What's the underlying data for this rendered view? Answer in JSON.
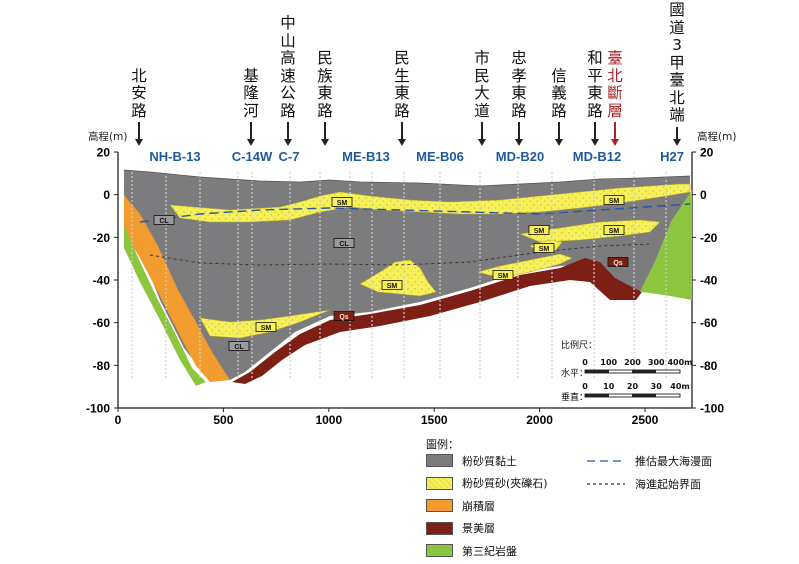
{
  "roads": [
    {
      "name": "北安路",
      "x": 139,
      "color": "black"
    },
    {
      "name": "基隆河",
      "x": 251,
      "color": "black"
    },
    {
      "name": "中山高速公路",
      "x": 288,
      "color": "black"
    },
    {
      "name": "民族東路",
      "x": 325,
      "color": "black"
    },
    {
      "name": "民生東路",
      "x": 402,
      "color": "black"
    },
    {
      "name": "市民大道",
      "x": 482,
      "color": "black"
    },
    {
      "name": "忠孝東路",
      "x": 519,
      "color": "black"
    },
    {
      "name": "信義路",
      "x": 559,
      "color": "black"
    },
    {
      "name": "和平東路",
      "x": 595,
      "color": "black"
    },
    {
      "name": "臺北斷層",
      "x": 615,
      "color": "red"
    },
    {
      "name": "國道3甲臺北端",
      "x": 677,
      "color": "black"
    }
  ],
  "boreholes": [
    {
      "label": "NH-B-13",
      "x": 175
    },
    {
      "label": "C-14W",
      "x": 252
    },
    {
      "label": "C-7",
      "x": 289
    },
    {
      "label": "ME-B13",
      "x": 366
    },
    {
      "label": "ME-B06",
      "x": 440
    },
    {
      "label": "MD-B20",
      "x": 520
    },
    {
      "label": "MD-B12",
      "x": 597
    },
    {
      "label": "H27",
      "x": 672
    }
  ],
  "axes": {
    "y_label_left": "高程(m)",
    "y_label_right": "高程(m)",
    "y_ticks": [
      "20",
      "0",
      "-20",
      "-40",
      "-60",
      "-80",
      "-100"
    ],
    "x_ticks": [
      "0",
      "500",
      "1000",
      "1500",
      "2000",
      "2500"
    ]
  },
  "layer_labels": [
    "CL",
    "CL",
    "CL",
    "SM",
    "SM",
    "SM",
    "SM",
    "SM",
    "SM",
    "SM",
    "SM",
    "SM",
    "Qs",
    "Qs"
  ],
  "scale": {
    "title": "比例尺：",
    "horizontal_label": "水平：",
    "vertical_label": "垂直：",
    "horizontal_ticks": [
      "0",
      "100",
      "200",
      "300",
      "400m"
    ],
    "vertical_ticks": [
      "0",
      "10",
      "20",
      "30",
      "40m"
    ]
  },
  "legend": {
    "title": "圖例：",
    "items": [
      {
        "label": "粉砂質黏土",
        "color": "#7c7c7e"
      },
      {
        "label": "粉砂質砂(夾礫石)",
        "color": "#f6f05a"
      },
      {
        "label": "崩積層",
        "color": "#f29b2e"
      },
      {
        "label": "景美層",
        "color": "#7d1f14"
      },
      {
        "label": "第三紀岩盤",
        "color": "#8cc63f"
      }
    ],
    "lines": [
      {
        "label": "推估最大海漫面",
        "style": "long-dash"
      },
      {
        "label": "海進起始界面",
        "style": "short-dash"
      }
    ]
  }
}
